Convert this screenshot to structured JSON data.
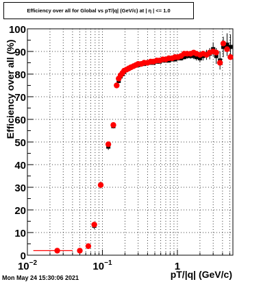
{
  "title": "Efficiency over all for Global vs pT/|q| (GeV/c) at | η | <= 1.0",
  "timestamp": "Mon May 24 15:30:06 2021",
  "chart_data": {
    "type": "scatter",
    "title": "Efficiency over all for Global vs pT/|q| (GeV/c) at | η | <= 1.0",
    "xlabel": "pT/|q| (GeV/c)",
    "ylabel": "Efficiency over all (%)",
    "xscale": "log",
    "xlim": [
      0.01,
      5.5
    ],
    "ylim": [
      0,
      100
    ],
    "grid": true,
    "xtick_labels": [
      {
        "value": 0.01,
        "base": "10",
        "exp": "−2"
      },
      {
        "value": 0.1,
        "base": "10",
        "exp": "−1"
      },
      {
        "value": 1,
        "base": "1",
        "exp": ""
      }
    ],
    "yticks": [
      0,
      10,
      20,
      30,
      40,
      50,
      60,
      70,
      80,
      90,
      100
    ],
    "series": [
      {
        "color": "#000000",
        "x": [
          0.025,
          0.05,
          0.065,
          0.078,
          0.095,
          0.12,
          0.14,
          0.155,
          0.165,
          0.175,
          0.185,
          0.195,
          0.21,
          0.225,
          0.24,
          0.26,
          0.28,
          0.3,
          0.33,
          0.36,
          0.4,
          0.44,
          0.48,
          0.53,
          0.58,
          0.64,
          0.7,
          0.77,
          0.85,
          0.93,
          1.02,
          1.12,
          1.23,
          1.35,
          1.5,
          1.65,
          1.8,
          2.0,
          2.2,
          2.45,
          2.7,
          3.0,
          3.3,
          3.7,
          4.1,
          4.6,
          5.1
        ],
        "y": [
          2,
          2,
          4,
          13,
          31,
          48,
          57,
          75,
          77,
          79,
          80,
          81,
          82,
          82.5,
          83,
          83.5,
          84,
          84,
          84.5,
          84.5,
          85,
          85,
          85,
          85.5,
          85.5,
          86,
          86,
          86,
          86.5,
          86.5,
          87,
          87,
          87.5,
          88,
          88,
          88,
          87.5,
          87,
          88,
          88.5,
          89,
          91,
          88,
          86,
          92,
          93,
          92
        ],
        "err": [
          0.5,
          0.5,
          1,
          1.5,
          1.5,
          1.5,
          1,
          1,
          1,
          0.8,
          0.8,
          0.8,
          0.8,
          0.8,
          0.8,
          0.8,
          0.8,
          0.8,
          0.8,
          0.8,
          0.8,
          0.8,
          0.8,
          0.8,
          0.8,
          0.8,
          0.8,
          0.8,
          0.9,
          0.9,
          1,
          1,
          1,
          1.2,
          1.2,
          1.4,
          1.5,
          1.7,
          2,
          2.2,
          2.5,
          3,
          3.5,
          4,
          4.5,
          5,
          5.5
        ]
      },
      {
        "color": "#ff0000",
        "x": [
          0.025,
          0.05,
          0.065,
          0.078,
          0.095,
          0.12,
          0.14,
          0.155,
          0.165,
          0.175,
          0.185,
          0.195,
          0.21,
          0.225,
          0.24,
          0.26,
          0.28,
          0.3,
          0.33,
          0.36,
          0.4,
          0.44,
          0.48,
          0.53,
          0.58,
          0.64,
          0.7,
          0.77,
          0.85,
          0.93,
          1.02,
          1.12,
          1.23,
          1.35,
          1.5,
          1.65,
          1.8,
          2.0,
          2.2,
          2.45,
          2.7,
          3.0,
          3.3,
          3.7,
          4.1,
          4.6,
          5.1
        ],
        "y": [
          2,
          2,
          4,
          13.5,
          31,
          49,
          57.5,
          75,
          78,
          79.5,
          80.5,
          81.5,
          82,
          82.5,
          83,
          83.5,
          84,
          84.5,
          84.5,
          85,
          85,
          85.5,
          85.5,
          86,
          86,
          86.5,
          86.5,
          87,
          87,
          87.5,
          87.5,
          88,
          89,
          89,
          89,
          89.5,
          89,
          88.5,
          89,
          88.5,
          89.5,
          90,
          89.5,
          85,
          93.5,
          91,
          87.5
        ],
        "xerr_first": [
          0.012,
          0.04
        ]
      }
    ]
  }
}
